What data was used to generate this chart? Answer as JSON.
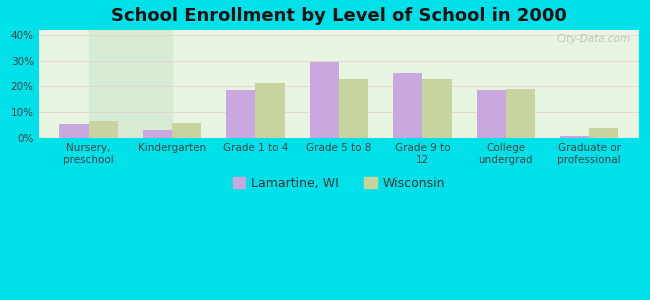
{
  "title": "School Enrollment by Level of School in 2000",
  "categories": [
    "Nursery,\npreschool",
    "Kindergarten",
    "Grade 1 to 4",
    "Grade 5 to 8",
    "Grade 9 to\n12",
    "College\nundergrad",
    "Graduate or\nprofessional"
  ],
  "lamartine": [
    5.5,
    3.0,
    18.5,
    29.5,
    25.0,
    18.5,
    1.0
  ],
  "wisconsin": [
    6.5,
    6.0,
    21.5,
    23.0,
    23.0,
    19.0,
    4.0
  ],
  "lamartine_color": "#c9a8e0",
  "wisconsin_color": "#c8d4a0",
  "bg_outer": "#00e0e8",
  "ylim": [
    0,
    42
  ],
  "yticks": [
    0,
    10,
    20,
    30,
    40
  ],
  "ytick_labels": [
    "0%",
    "10%",
    "20%",
    "30%",
    "40%"
  ],
  "legend_lamartine": "Lamartine, WI",
  "legend_wisconsin": "Wisconsin",
  "bar_width": 0.35,
  "title_fontsize": 13,
  "tick_fontsize": 7.5,
  "legend_fontsize": 9,
  "watermark": "City-Data.com"
}
